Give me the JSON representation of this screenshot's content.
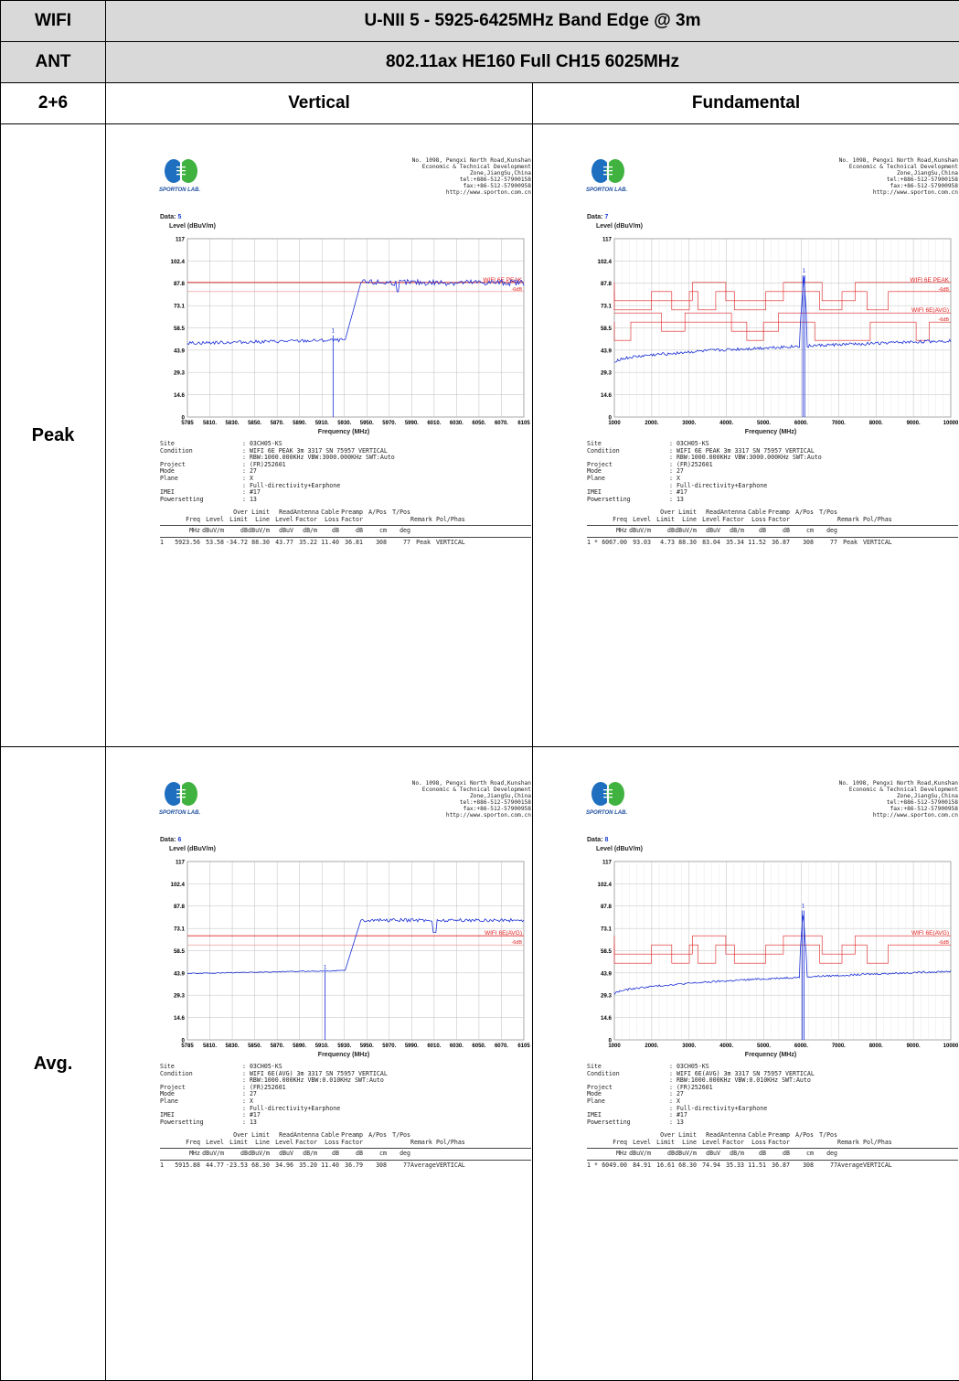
{
  "header": {
    "r1_label": "WIFI",
    "r1_title": "U-NII 5 - 5925-6425MHz Band Edge @ 3m",
    "r2_label": "ANT",
    "r2_title": "802.11ax HE160 Full CH15 6025MHz",
    "r3_label": "2+6",
    "col_vertical": "Vertical",
    "col_fundamental": "Fundamental"
  },
  "rows": {
    "peak": "Peak",
    "avg": "Avg."
  },
  "colors": {
    "trace": "#1a2fd6",
    "limit": "#e02020",
    "grid": "#bdbdbd",
    "header_bg": "#d9d9d9"
  },
  "lab": {
    "logo_text": "SPORTON LAB.",
    "address": "No. 1098, Pengxi North Road,Kunshan\nEconomic & Technical Development\nZone,JiangSu,China\ntel:+886-512-57900158\nfax:+86-512-57900958\nhttp://www.sporton.com.cn"
  },
  "common": {
    "data_label": "Data:",
    "y_label": "Level (dBuV/m)",
    "x_label": "Frequency (MHz)",
    "y_ticks": [
      "117",
      "102.4",
      "87.8",
      "73.1",
      "58.5",
      "43.9",
      "29.3",
      "14.6",
      "0"
    ],
    "x_ticks_edge": [
      "5785",
      "5810.",
      "5830.",
      "5850.",
      "5870.",
      "5890.",
      "5910.",
      "5930.",
      "5950.",
      "5970.",
      "5990.",
      "6010.",
      "6030.",
      "6050.",
      "6070.",
      "6105"
    ],
    "x_ticks_fund": [
      "1000",
      "2000.",
      "3000.",
      "4000.",
      "5000.",
      "6000.",
      "7000.",
      "8000.",
      "9000.",
      "10000"
    ],
    "meta_keys": [
      "Site",
      "Condition",
      "",
      "Project",
      "Mode",
      "Plane",
      "",
      "IMEI",
      "Powersetting"
    ],
    "head1": [
      "",
      "",
      "",
      "Over",
      "Limit",
      "Read",
      "Antenna",
      "Cable",
      "Preamp",
      "A/Pos",
      "T/Pos",
      "",
      ""
    ],
    "head2": [
      "",
      "Freq",
      "Level",
      "Limit",
      "Line",
      "Level",
      "Factor",
      "Loss",
      "Factor",
      "",
      "",
      "Remark",
      "Pol/Phas"
    ],
    "units": [
      "",
      "MHz",
      "dBuV/m",
      "dB",
      "dBuV/m",
      "dBuV",
      "dB/m",
      "dB",
      "dB",
      "cm",
      "deg",
      "",
      ""
    ]
  },
  "panels": {
    "peak_vertical": {
      "data_num": "5",
      "meta_vals": [
        ": 03CH05-KS",
        ": WIFI 6E PEAK 3m 3317 SN 75957 VERTICAL",
        ": RBW:1000.000KHz VBW:3000.000KHz SWT:Auto",
        ": (FR)252601",
        ": 27",
        ": X",
        ": Full-directivity+Earphone",
        ": #17",
        ": 13"
      ],
      "result": [
        "1",
        "5923.56",
        "53.58",
        "-34.72",
        "88.30",
        "43.77",
        "35.22",
        "11.40",
        "36.81",
        "308",
        "77",
        "Peak",
        "VERTICAL"
      ],
      "limit_label": "WIFI 6E PEAK",
      "limit_sub": "-6dB"
    },
    "peak_fund": {
      "data_num": "7",
      "meta_vals": [
        ": 03CH05-KS",
        ": WIFI 6E PEAK 3m 3317 SN 75957 VERTICAL",
        ": RBW:1000.000KHz VBW:3000.000KHz SWT:Auto",
        ": (FR)252601",
        ": 27",
        ": X",
        ": Full-directivity+Earphone",
        ": #17",
        ": 13"
      ],
      "result": [
        "1 *",
        "6067.00",
        "93.03",
        "4.73",
        "88.30",
        "83.04",
        "35.34",
        "11.52",
        "36.87",
        "308",
        "77",
        "Peak",
        "VERTICAL"
      ],
      "limit_label": "WIFI 6E PEAK",
      "limit_sub": "-6dB",
      "limit_label2": "WIFI 6E(AVG)",
      "limit_sub2": "-6dB"
    },
    "avg_vertical": {
      "data_num": "6",
      "meta_vals": [
        ": 03CH05-KS",
        ": WIFI 6E(AVG) 3m 3317 SN 75957 VERTICAL",
        ": RBW:1000.000KHz VBW:0.010KHz SWT:Auto",
        ": (FR)252601",
        ": 27",
        ": X",
        ": Full-directivity+Earphone",
        ": #17",
        ": 13"
      ],
      "result": [
        "1",
        "5915.88",
        "44.77",
        "-23.53",
        "68.30",
        "34.96",
        "35.20",
        "11.40",
        "36.79",
        "308",
        "77",
        "Average",
        "VERTICAL"
      ],
      "limit_label": "WIFI 6E(AVG)",
      "limit_sub": "-6dB"
    },
    "avg_fund": {
      "data_num": "8",
      "meta_vals": [
        ": 03CH05-KS",
        ": WIFI 6E(AVG) 3m 3317 SN 75957 VERTICAL",
        ": RBW:1000.000KHz VBW:0.010KHz SWT:Auto",
        ": (FR)252601",
        ": 27",
        ": X",
        ": Full-directivity+Earphone",
        ": #17",
        ": 13"
      ],
      "result": [
        "1 *",
        "6049.00",
        "84.91",
        "16.61",
        "68.30",
        "74.94",
        "35.33",
        "11.51",
        "36.87",
        "308",
        "77",
        "Average",
        "VERTICAL"
      ],
      "limit_label": "WIFI 6E(AVG)",
      "limit_sub": "-6dB"
    }
  },
  "chart_data": [
    {
      "type": "line",
      "panel": "peak_vertical",
      "xlabel": "Frequency (MHz)",
      "ylabel": "Level (dBuV/m)",
      "xlim": [
        5785,
        6105
      ],
      "ylim": [
        0,
        117
      ],
      "limits": [
        {
          "name": "WIFI 6E PEAK",
          "value": 88.3
        }
      ],
      "marker": {
        "x": 5923.56,
        "y": 53.58
      }
    },
    {
      "type": "line",
      "panel": "peak_fund",
      "xlabel": "Frequency (MHz)",
      "ylabel": "Level (dBuV/m)",
      "xlim": [
        1000,
        10000
      ],
      "ylim": [
        0,
        117
      ],
      "limits": [
        {
          "name": "WIFI 6E PEAK",
          "value": 88.3
        },
        {
          "name": "WIFI 6E(AVG)",
          "value": 68.3
        }
      ],
      "marker": {
        "x": 6067.0,
        "y": 93.03
      }
    },
    {
      "type": "line",
      "panel": "avg_vertical",
      "xlabel": "Frequency (MHz)",
      "ylabel": "Level (dBuV/m)",
      "xlim": [
        5785,
        6105
      ],
      "ylim": [
        0,
        117
      ],
      "limits": [
        {
          "name": "WIFI 6E(AVG)",
          "value": 68.3
        }
      ],
      "marker": {
        "x": 5915.88,
        "y": 44.77
      }
    },
    {
      "type": "line",
      "panel": "avg_fund",
      "xlabel": "Frequency (MHz)",
      "ylabel": "Level (dBuV/m)",
      "xlim": [
        1000,
        10000
      ],
      "ylim": [
        0,
        117
      ],
      "limits": [
        {
          "name": "WIFI 6E(AVG)",
          "value": 68.3
        }
      ],
      "marker": {
        "x": 6049.0,
        "y": 84.91
      }
    }
  ]
}
